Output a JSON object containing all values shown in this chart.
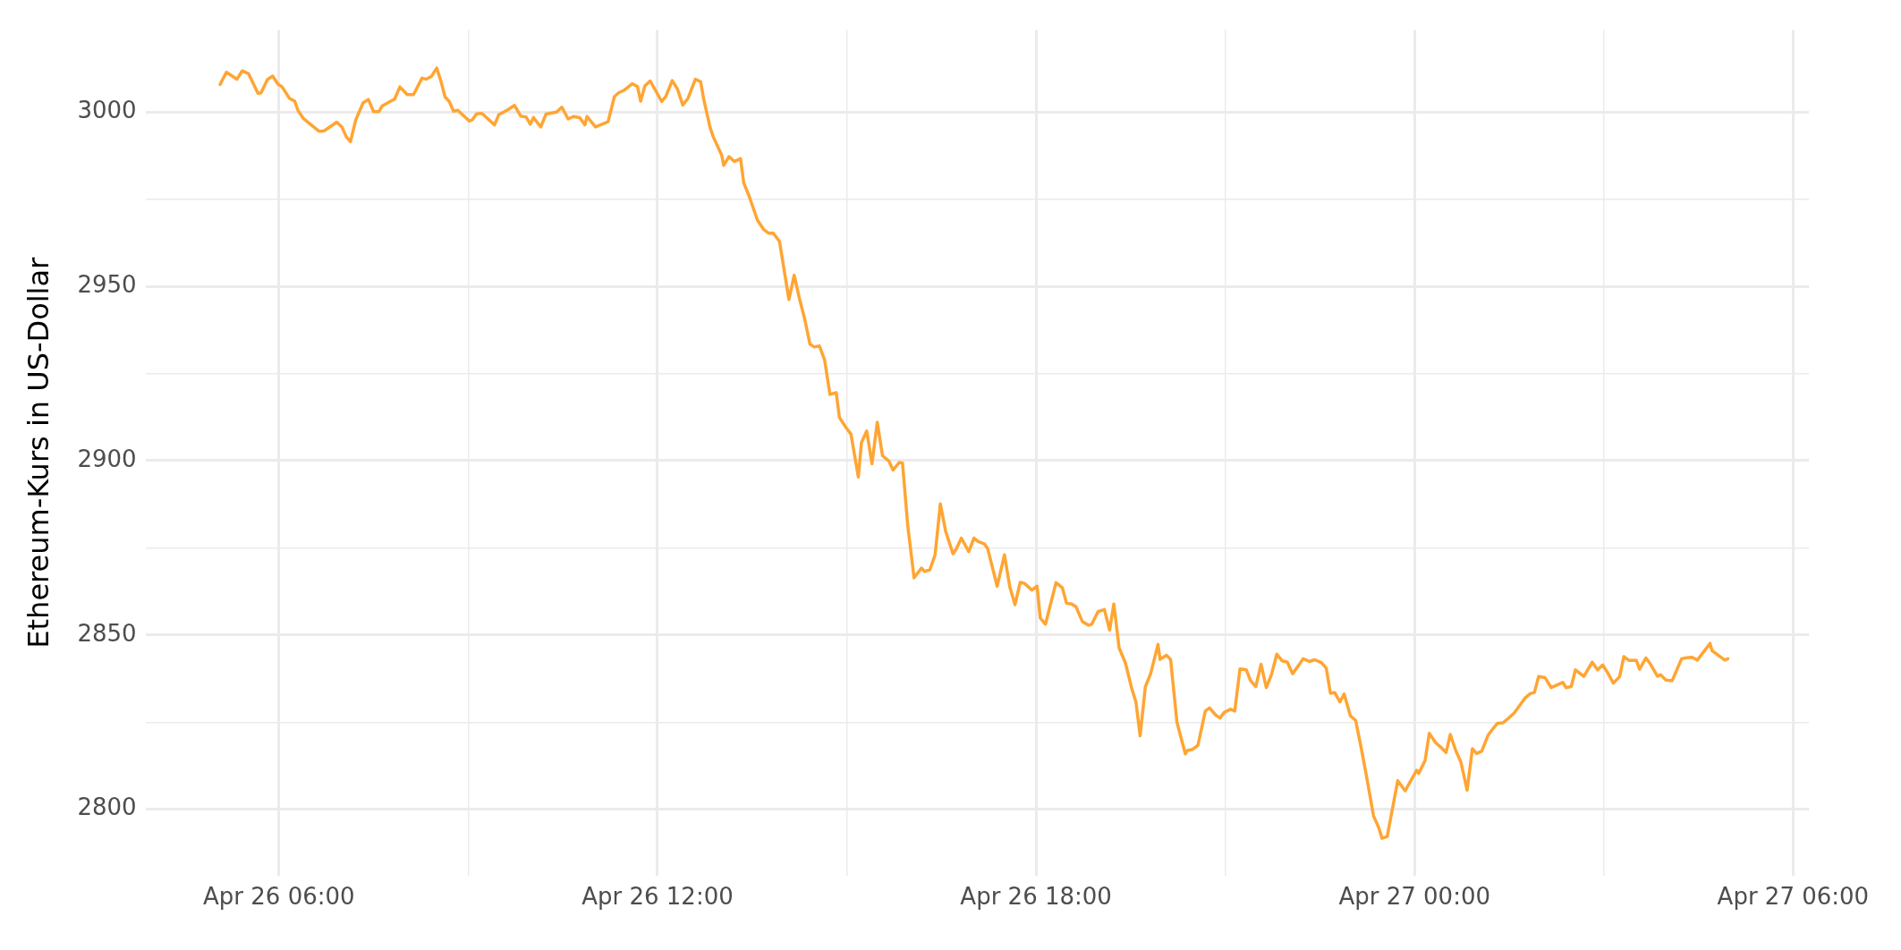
{
  "chart_data": {
    "type": "line",
    "ylabel": "Ethereum-Kurs in US-Dollar",
    "color": "#ffa533",
    "marker": "none",
    "grid": true,
    "x": [
      "--04-26T05:04",
      "--04-26T05:10",
      "--04-26T05:20",
      "--04-26T05:25",
      "--04-26T05:31",
      "--04-26T05:40",
      "--04-26T05:43",
      "--04-26T05:49",
      "--04-26T05:54",
      "--04-26T05:59",
      "--04-26T06:03",
      "--04-26T06:10",
      "--04-26T06:15",
      "--04-26T06:18",
      "--04-26T06:23",
      "--04-26T06:29",
      "--04-26T06:33",
      "--04-26T06:38",
      "--04-26T06:43",
      "--04-26T06:55",
      "--04-26T07:00",
      "--04-26T07:04",
      "--04-26T07:08",
      "--04-26T07:13",
      "--04-26T07:20",
      "--04-26T07:25",
      "--04-26T07:30",
      "--04-26T07:35",
      "--04-26T07:38",
      "--04-26T07:50",
      "--04-26T07:55",
      "--04-26T08:02",
      "--04-26T08:08",
      "--04-26T08:16",
      "--04-26T08:20",
      "--04-26T08:25",
      "--04-26T08:30",
      "--04-26T08:34",
      "--04-26T08:38",
      "--04-26T08:42",
      "--04-26T08:46",
      "--04-26T08:50",
      "--04-26T09:01",
      "--04-26T09:04",
      "--04-26T09:08",
      "--04-26T09:13",
      "--04-26T09:25",
      "--04-26T09:29",
      "--04-26T09:38",
      "--04-26T09:44",
      "--04-26T09:50",
      "--04-26T09:55",
      "--04-26T09:59",
      "--04-26T10:02",
      "--04-26T10:09",
      "--04-26T10:14",
      "--04-26T10:24",
      "--04-26T10:29",
      "--04-26T10:35",
      "--04-26T10:40",
      "--04-26T10:46",
      "--04-26T10:51",
      "--04-26T10:53",
      "--04-26T11:01",
      "--04-26T11:13",
      "--04-26T11:19",
      "--04-26T11:23",
      "--04-26T11:28",
      "--04-26T11:36",
      "--04-26T11:41",
      "--04-26T11:44",
      "--04-26T11:48",
      "--04-26T11:53",
      "--04-26T11:59",
      "--04-26T12:04",
      "--04-26T12:08",
      "--04-26T12:14",
      "--04-26T12:19",
      "--04-26T12:24",
      "--04-26T12:29",
      "--04-26T12:36",
      "--04-26T12:41",
      "--04-26T12:44",
      "--04-26T12:50",
      "--04-26T12:53",
      "--04-26T13:01",
      "--04-26T13:03",
      "--04-26T13:08",
      "--04-26T13:13",
      "--04-26T13:19",
      "--04-26T13:22",
      "--04-26T13:27",
      "--04-26T13:35",
      "--04-26T13:41",
      "--04-26T13:46",
      "--04-26T13:50",
      "--04-26T13:56",
      "--04-26T14:00",
      "--04-26T14:05",
      "--04-26T14:10",
      "--04-26T14:15",
      "--04-26T14:20",
      "--04-26T14:25",
      "--04-26T14:29",
      "--04-26T14:34",
      "--04-26T14:39",
      "--04-26T14:44",
      "--04-26T14:50",
      "--04-26T14:53",
      "--04-26T14:59",
      "--04-26T15:04",
      "--04-26T15:11",
      "--04-26T15:14",
      "--04-26T15:19",
      "--04-26T15:24",
      "--04-26T15:29",
      "--04-26T15:34",
      "--04-26T15:40",
      "--04-26T15:44",
      "--04-26T15:50",
      "--04-26T15:53",
      "--04-26T15:58",
      "--04-26T16:04",
      "--04-26T16:11",
      "--04-26T16:14",
      "--04-26T16:19",
      "--04-26T16:24",
      "--04-26T16:29",
      "--04-26T16:34",
      "--04-26T16:41",
      "--04-26T16:44",
      "--04-26T16:49",
      "--04-26T16:56",
      "--04-26T17:01",
      "--04-26T17:05",
      "--04-26T17:11",
      "--04-26T17:14",
      "--04-26T17:23",
      "--04-26T17:30",
      "--04-26T17:35",
      "--04-26T17:40",
      "--04-26T17:45",
      "--04-26T17:49",
      "--04-26T17:56",
      "--04-26T18:01",
      "--04-26T18:04",
      "--04-26T18:09",
      "--04-26T18:19",
      "--04-26T18:25",
      "--04-26T18:29",
      "--04-26T18:34",
      "--04-26T18:38",
      "--04-26T18:44",
      "--04-26T18:50",
      "--04-26T18:53",
      "--04-26T18:59",
      "--04-26T19:05",
      "--04-26T19:10",
      "--04-26T19:14",
      "--04-26T19:19",
      "--04-26T19:25",
      "--04-26T19:31",
      "--04-26T19:35",
      "--04-26T19:39",
      "--04-26T19:44",
      "--04-26T19:49",
      "--04-26T19:56",
      "--04-26T19:58",
      "--04-26T20:04",
      "--04-26T20:08",
      "--04-26T20:14",
      "--04-26T20:22",
      "--04-26T20:24",
      "--04-26T20:29",
      "--04-26T20:34",
      "--04-26T20:41",
      "--04-26T20:45",
      "--04-26T20:51",
      "--04-26T20:55",
      "--04-26T20:59",
      "--04-26T21:05",
      "--04-26T21:09",
      "--04-26T21:14",
      "--04-26T21:20",
      "--04-26T21:24",
      "--04-26T21:29",
      "--04-26T21:34",
      "--04-26T21:39",
      "--04-26T21:44",
      "--04-26T21:49",
      "--04-26T21:54",
      "--04-26T21:59",
      "--04-26T22:04",
      "--04-26T22:10",
      "--04-26T22:14",
      "--04-26T22:20",
      "--04-26T22:25",
      "--04-26T22:31",
      "--04-26T22:36",
      "--04-26T22:40",
      "--04-26T22:44",
      "--04-26T22:49",
      "--04-26T22:53",
      "--04-26T22:59",
      "--04-26T23:04",
      "--04-26T23:09",
      "--04-26T23:14",
      "--04-26T23:21",
      "--04-26T23:26",
      "--04-26T23:29",
      "--04-26T23:34",
      "--04-26T23:44",
      "--04-26T23:51",
      "--04-27T00:02",
      "--04-27T00:04",
      "--04-27T00:10",
      "--04-27T00:14",
      "--04-27T00:20",
      "--04-27T00:25",
      "--04-27T00:30",
      "--04-27T00:34",
      "--04-27T00:39",
      "--04-27T00:44",
      "--04-27T00:50",
      "--04-27T00:55",
      "--04-27T00:59",
      "--04-27T01:04",
      "--04-27T01:10",
      "--04-27T01:14",
      "--04-27T01:19",
      "--04-27T01:24",
      "--04-27T01:30",
      "--04-27T01:35",
      "--04-27T01:45",
      "--04-27T01:50",
      "--04-27T01:54",
      "--04-27T01:58",
      "--04-27T02:04",
      "--04-27T02:10",
      "--04-27T02:21",
      "--04-27T02:24",
      "--04-27T02:29",
      "--04-27T02:33",
      "--04-27T02:41",
      "--04-27T02:49",
      "--04-27T02:54",
      "--04-27T02:59",
      "--04-27T03:04",
      "--04-27T03:09",
      "--04-27T03:15",
      "--04-27T03:19",
      "--04-27T03:24",
      "--04-27T03:31",
      "--04-27T03:34",
      "--04-27T03:40",
      "--04-27T03:44",
      "--04-27T03:51",
      "--04-27T03:54",
      "--04-27T03:59",
      "--04-27T04:05",
      "--04-27T04:14",
      "--04-27T04:19",
      "--04-27T04:24",
      "--04-27T04:29",
      "--04-27T04:41",
      "--04-27T04:43",
      "--04-27T04:55",
      "--04-27T04:58"
    ],
    "values": [
      3007.9,
      3011.4,
      3009.4,
      3011.8,
      3011.0,
      3005.4,
      3005.5,
      3009.3,
      3010.3,
      3008.0,
      3007.2,
      3003.9,
      3003.1,
      3000.5,
      2998.2,
      2996.7,
      2995.7,
      2994.5,
      2994.6,
      2997.1,
      2995.6,
      2992.9,
      2991.5,
      2997.7,
      3002.6,
      3003.6,
      3000.1,
      3000.1,
      3001.7,
      3003.7,
      3007.2,
      3005.0,
      3005.0,
      3009.7,
      3009.4,
      3010.2,
      3012.6,
      3008.9,
      3004.3,
      3003.0,
      3000.2,
      3000.5,
      2997.4,
      2997.8,
      2999.5,
      2999.6,
      2996.3,
      2999.2,
      3000.7,
      3001.9,
      2998.8,
      2998.6,
      2996.5,
      2998.4,
      2995.7,
      2999.4,
      3000.0,
      3001.4,
      2998.0,
      2998.7,
      2998.4,
      2996.3,
      2998.7,
      2995.7,
      2997.2,
      3004.4,
      3005.5,
      3006.2,
      3008.1,
      3007.3,
      3003.1,
      3007.5,
      3008.9,
      3005.7,
      3003.0,
      3004.5,
      3009.0,
      3006.6,
      3002.0,
      3003.9,
      3009.4,
      3008.7,
      3003.6,
      2995.6,
      2992.9,
      2987.7,
      2984.7,
      2987.2,
      2985.8,
      2986.6,
      2979.7,
      2976.0,
      2969.0,
      2966.3,
      2965.2,
      2965.3,
      2962.9,
      2955.5,
      2946.2,
      2953.2,
      2946.5,
      2940.6,
      2933.4,
      2932.6,
      2932.9,
      2928.8,
      2919.0,
      2919.5,
      2912.4,
      2909.6,
      2907.6,
      2895.3,
      2905.2,
      2908.5,
      2899.1,
      2911.0,
      2901.4,
      2899.9,
      2897.3,
      2899.5,
      2899.3,
      2881.4,
      2866.4,
      2869.2,
      2868.2,
      2868.7,
      2873.0,
      2887.6,
      2879.8,
      2873.3,
      2874.6,
      2877.8,
      2873.9,
      2877.8,
      2876.8,
      2876.1,
      2874.8,
      2864.0,
      2873.0,
      2863.9,
      2858.7,
      2865.1,
      2864.8,
      2862.9,
      2864.0,
      2854.9,
      2853.1,
      2865.0,
      2863.6,
      2859.1,
      2858.9,
      2858.1,
      2853.9,
      2852.8,
      2853.1,
      2856.7,
      2857.3,
      2851.4,
      2858.9,
      2846.3,
      2842.0,
      2834.7,
      2830.8,
      2821.1,
      2835.2,
      2838.9,
      2847.3,
      2843.0,
      2844.2,
      2843.0,
      2825.0,
      2815.9,
      2816.9,
      2817.2,
      2818.4,
      2828.2,
      2829.1,
      2827.0,
      2826.2,
      2827.8,
      2828.7,
      2828.2,
      2840.3,
      2840.0,
      2836.9,
      2835.2,
      2841.6,
      2834.9,
      2838.7,
      2844.5,
      2842.6,
      2842.2,
      2838.9,
      2841.4,
      2843.2,
      2842.4,
      2842.9,
      2842.2,
      2840.5,
      2833.3,
      2833.5,
      2830.8,
      2833.1,
      2826.8,
      2825.5,
      2818.0,
      2810.0,
      2798.1,
      2794.7,
      2791.7,
      2792.2,
      2808.2,
      2805.3,
      2811.2,
      2810.3,
      2814.0,
      2821.8,
      2819.1,
      2817.8,
      2816.3,
      2821.5,
      2817.0,
      2813.6,
      2805.5,
      2817.4,
      2816.0,
      2816.7,
      2821.3,
      2822.9,
      2824.7,
      2824.8,
      2826.3,
      2827.7,
      2831.9,
      2833.2,
      2833.5,
      2838.1,
      2837.8,
      2834.9,
      2836.4,
      2834.9,
      2835.2,
      2840.0,
      2838.1,
      2842.2,
      2840.0,
      2841.4,
      2839.0,
      2836.2,
      2838.0,
      2843.8,
      2842.7,
      2842.7,
      2840.2,
      2843.4,
      2841.8,
      2838.2,
      2838.6,
      2837.1,
      2836.9,
      2843.2,
      2843.5,
      2843.6,
      2842.8,
      2847.6,
      2845.5,
      2842.8,
      2843.2
    ],
    "xlim": [
      "--04-26T03:53",
      "--04-27T06:15"
    ],
    "xticks": [
      {
        "value": "--04-26T06:00",
        "label": "Apr 26 06:00"
      },
      {
        "value": "--04-26T09:00",
        "label": null
      },
      {
        "value": "--04-26T12:00",
        "label": "Apr 26 12:00"
      },
      {
        "value": "--04-26T15:00",
        "label": null
      },
      {
        "value": "--04-26T18:00",
        "label": "Apr 26 18:00"
      },
      {
        "value": "--04-26T21:00",
        "label": null
      },
      {
        "value": "--04-27T00:00",
        "label": "Apr 27 00:00"
      },
      {
        "value": "--04-27T03:00",
        "label": null
      },
      {
        "value": "--04-27T06:00",
        "label": "Apr 27 06:00"
      }
    ],
    "ylim": [
      2781,
      3023.5
    ],
    "yticks": [
      2800,
      {
        "value": 2825,
        "label": null
      },
      2850,
      {
        "value": 2875,
        "label": null
      },
      2900,
      {
        "value": 2925,
        "label": null
      },
      2950,
      {
        "value": 2975,
        "label": null
      },
      3000
    ]
  }
}
